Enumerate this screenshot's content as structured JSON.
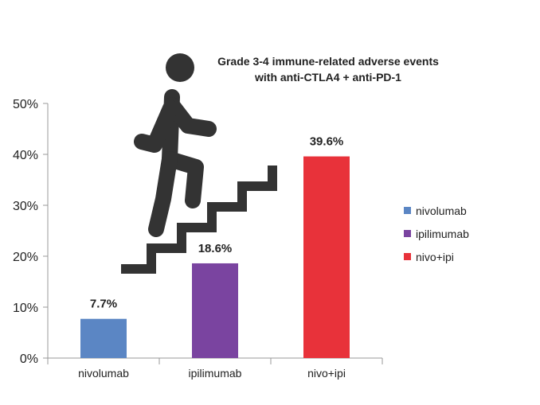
{
  "chart_data": {
    "type": "bar",
    "title_lines": [
      "Grade 3-4 immune-related  adverse events",
      "with anti-CTLA4 + anti-PD-1"
    ],
    "categories": [
      "nivolumab",
      "ipilimumab",
      "nivo+ipi"
    ],
    "values": [
      7.7,
      18.6,
      39.6
    ],
    "data_labels": [
      "7.7%",
      "18.6%",
      "39.6%"
    ],
    "colors": [
      "#5b86c4",
      "#7a44a0",
      "#e8323a"
    ],
    "ylim": [
      0,
      50
    ],
    "yticks": [
      0,
      10,
      20,
      30,
      40,
      50
    ],
    "ytick_labels": [
      "0%",
      "10%",
      "20%",
      "30%",
      "40%",
      "50%"
    ],
    "grid": false,
    "legend": {
      "position": "right",
      "entries": [
        "nivolumab",
        "ipilimumab",
        "nivo+ipi"
      ]
    },
    "decoration": "person-climbing-stairs-icon"
  }
}
